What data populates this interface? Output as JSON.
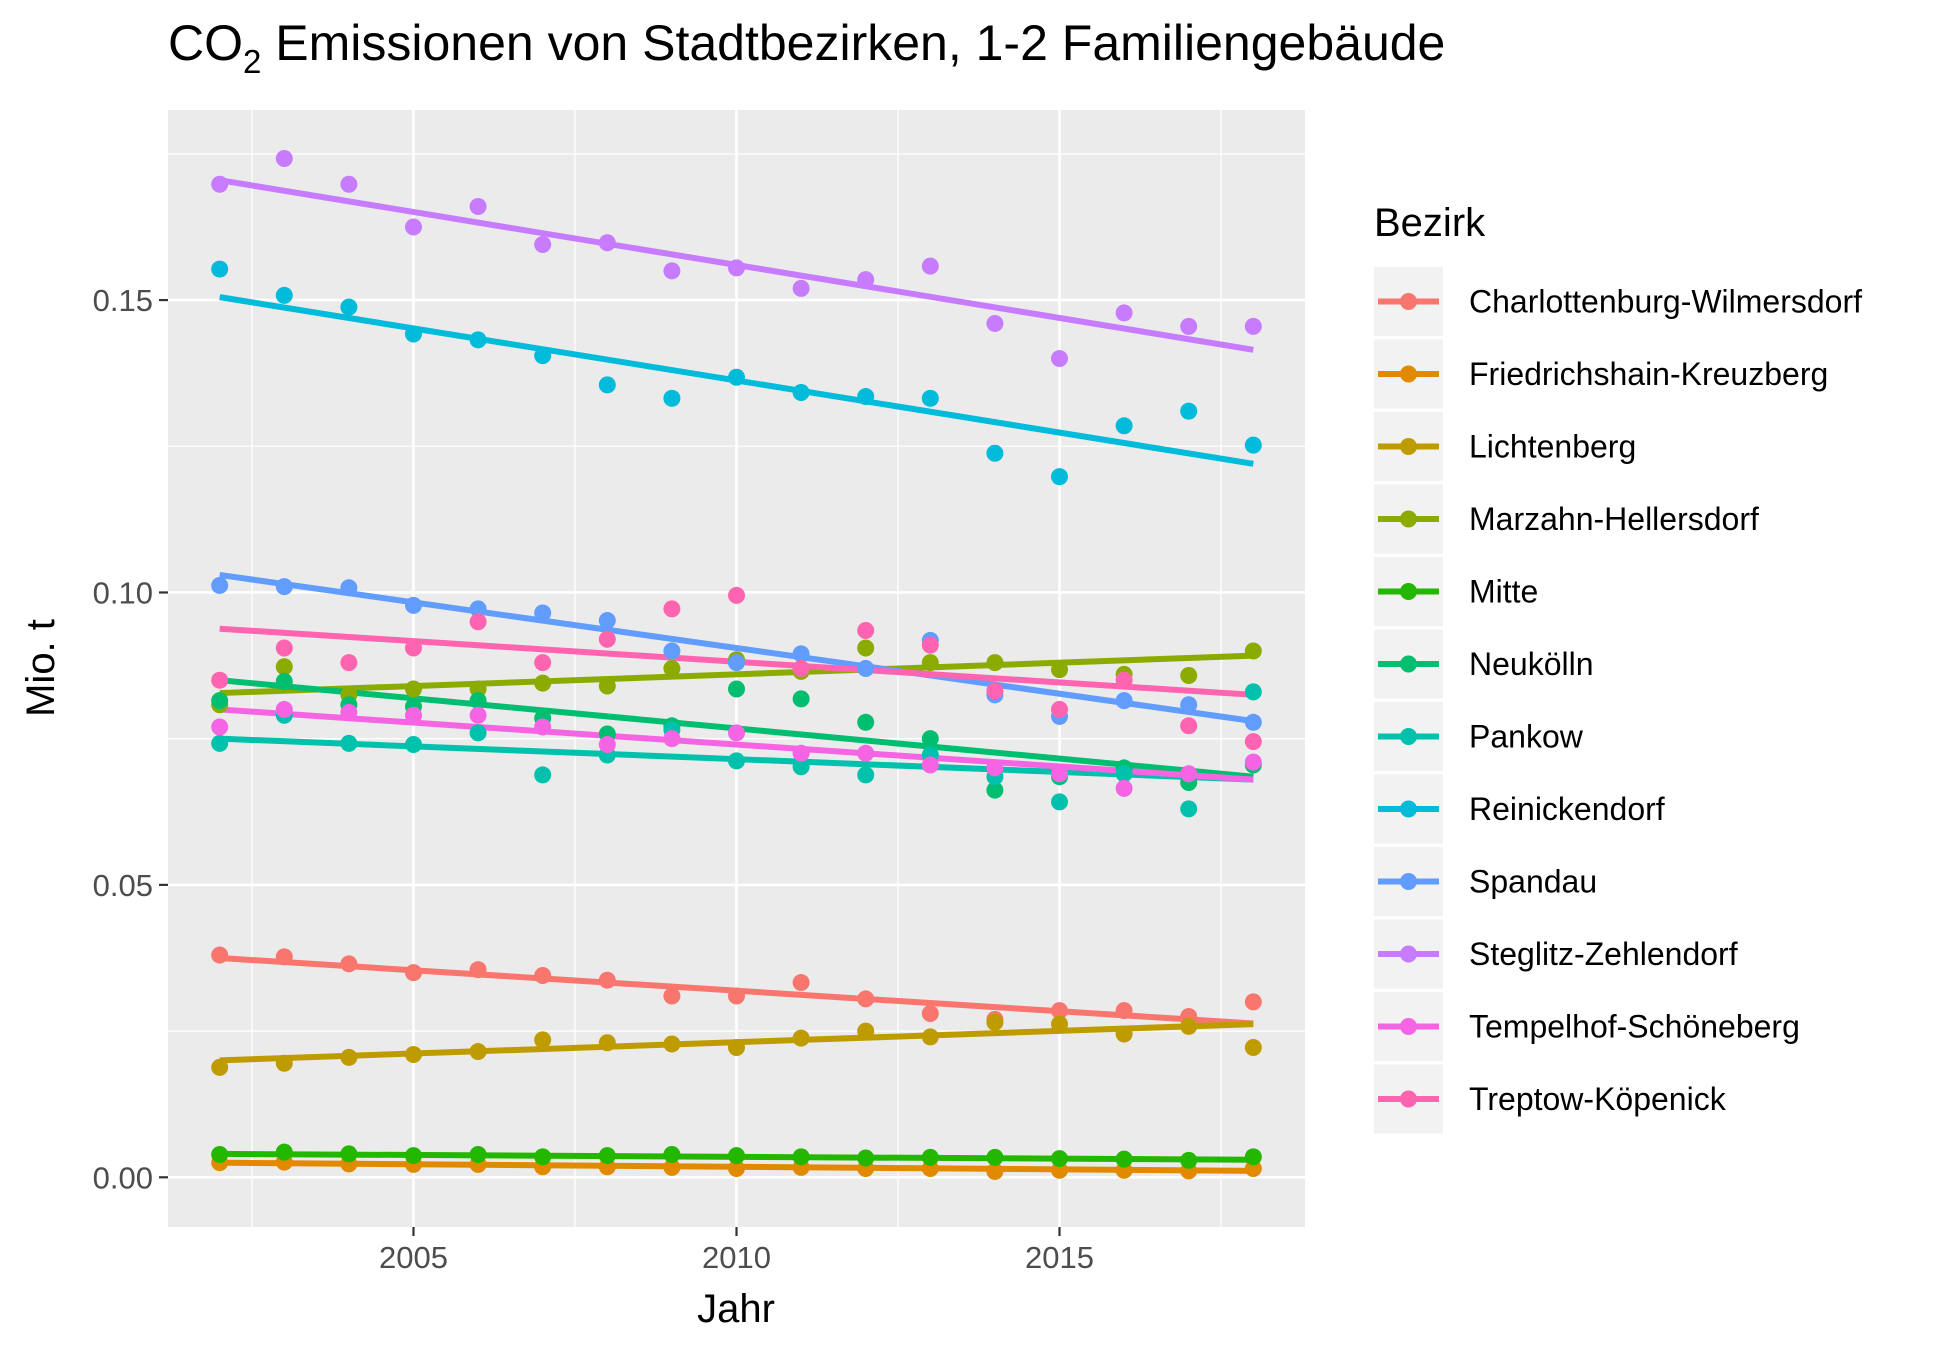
{
  "chart_data": {
    "type": "scatter",
    "title_main": "CO",
    "title_sub": "2",
    "title_rest": " Emissionen von Stadtbezirken, 1-2 Familiengebäude",
    "xlabel": "Jahr",
    "ylabel": "Mio. t",
    "xlim": [
      2001.2,
      2018.8
    ],
    "ylim": [
      -0.0085,
      0.1825
    ],
    "x_ticks": [
      2005,
      2010,
      2015
    ],
    "x_tick_labels": [
      "2005",
      "2010",
      "2015"
    ],
    "y_ticks": [
      0.0,
      0.05,
      0.1,
      0.15
    ],
    "y_tick_labels": [
      "0.00",
      "0.05",
      "0.10",
      "0.15"
    ],
    "grid": true,
    "trend_lines": "linear fit per series",
    "legend_title": "Bezirk",
    "legend_position": "right",
    "x": [
      2002,
      2003,
      2004,
      2005,
      2006,
      2007,
      2008,
      2009,
      2010,
      2011,
      2012,
      2013,
      2014,
      2015,
      2016,
      2017,
      2018
    ],
    "series": [
      {
        "name": "Charlottenburg-Wilmersdorf",
        "color": "#F8766D",
        "values": [
          0.038,
          0.0377,
          0.0365,
          0.035,
          0.0355,
          0.0345,
          0.0337,
          0.031,
          0.031,
          0.0333,
          0.0305,
          0.028,
          0.027,
          0.0285,
          0.0285,
          0.0275,
          0.03
        ],
        "fit": [
          0.0375,
          0.0263
        ]
      },
      {
        "name": "Friedrichshain-Kreuzberg",
        "color": "#E18A00",
        "values": [
          0.0025,
          0.0026,
          0.0023,
          0.0022,
          0.0022,
          0.0018,
          0.0018,
          0.0017,
          0.0015,
          0.0017,
          0.0015,
          0.0015,
          0.001,
          0.0012,
          0.0012,
          0.0011,
          0.0015
        ],
        "fit": [
          0.0025,
          0.0011
        ]
      },
      {
        "name": "Lichtenberg",
        "color": "#BE9C00",
        "values": [
          0.0188,
          0.0195,
          0.0205,
          0.021,
          0.0215,
          0.0235,
          0.023,
          0.0228,
          0.0222,
          0.0238,
          0.025,
          0.024,
          0.0265,
          0.0262,
          0.0245,
          0.0258,
          0.0222
        ],
        "fit": [
          0.02,
          0.0262
        ]
      },
      {
        "name": "Marzahn-Hellersdorf",
        "color": "#8CAB00",
        "values": [
          0.0808,
          0.0873,
          0.0825,
          0.0835,
          0.0835,
          0.0845,
          0.084,
          0.087,
          0.0885,
          0.0865,
          0.0905,
          0.088,
          0.088,
          0.0868,
          0.086,
          0.0858,
          0.09
        ],
        "fit": [
          0.0828,
          0.0892
        ]
      },
      {
        "name": "Mitte",
        "color": "#24B700",
        "values": [
          0.0039,
          0.0043,
          0.004,
          0.0037,
          0.0039,
          0.0035,
          0.0037,
          0.0039,
          0.0037,
          0.0035,
          0.0033,
          0.0034,
          0.0034,
          0.0032,
          0.0031,
          0.0029,
          0.0035
        ],
        "fit": [
          0.004,
          0.003
        ]
      },
      {
        "name": "Neukölln",
        "color": "#00BE70",
        "values": [
          0.0815,
          0.0848,
          0.0808,
          0.0805,
          0.0815,
          0.0785,
          0.0758,
          0.0772,
          0.0835,
          0.0818,
          0.0778,
          0.075,
          0.0662,
          0.0685,
          0.07,
          0.0675,
          0.0705
        ],
        "fit": [
          0.085,
          0.0685
        ]
      },
      {
        "name": "Pankow",
        "color": "#00C1AB",
        "values": [
          0.0742,
          0.079,
          0.0742,
          0.074,
          0.076,
          0.0688,
          0.0722,
          0.0765,
          0.0712,
          0.0702,
          0.0688,
          0.0722,
          0.0685,
          0.0642,
          0.069,
          0.063,
          0.083
        ],
        "fit": [
          0.075,
          0.068
        ]
      },
      {
        "name": "Reinickendorf",
        "color": "#00BBDA",
        "values": [
          0.1553,
          0.1508,
          0.1488,
          0.1442,
          0.1432,
          0.1405,
          0.1355,
          0.1332,
          0.1368,
          0.1342,
          0.1335,
          0.1332,
          0.1238,
          0.1198,
          0.1285,
          0.131,
          0.1252
        ],
        "fit": [
          0.1505,
          0.122
        ]
      },
      {
        "name": "Spandau",
        "color": "#619CFF",
        "values": [
          0.1012,
          0.101,
          0.1008,
          0.0978,
          0.0972,
          0.0965,
          0.0952,
          0.09,
          0.088,
          0.0895,
          0.087,
          0.0918,
          0.0825,
          0.0788,
          0.0815,
          0.0808,
          0.0778
        ],
        "fit": [
          0.103,
          0.078
        ]
      },
      {
        "name": "Steglitz-Zehlendorf",
        "color": "#C77CFF",
        "values": [
          0.1698,
          0.1742,
          0.1698,
          0.1625,
          0.166,
          0.1595,
          0.1598,
          0.155,
          0.1555,
          0.152,
          0.1535,
          0.1558,
          0.146,
          0.14,
          0.1478,
          0.1455,
          0.1455
        ],
        "fit": [
          0.1705,
          0.1415
        ]
      },
      {
        "name": "Tempelhof-Schöneberg",
        "color": "#F564E3",
        "values": [
          0.077,
          0.08,
          0.0795,
          0.079,
          0.079,
          0.077,
          0.074,
          0.075,
          0.076,
          0.0725,
          0.0725,
          0.0705,
          0.07,
          0.069,
          0.0665,
          0.069,
          0.071
        ],
        "fit": [
          0.08,
          0.068
        ]
      },
      {
        "name": "Treptow-Köpenick",
        "color": "#FF64B0",
        "values": [
          0.085,
          0.0905,
          0.088,
          0.0905,
          0.095,
          0.088,
          0.092,
          0.0972,
          0.0995,
          0.087,
          0.0935,
          0.091,
          0.0832,
          0.08,
          0.085,
          0.0772,
          0.0745
        ],
        "fit": [
          0.0938,
          0.0825
        ]
      }
    ]
  }
}
